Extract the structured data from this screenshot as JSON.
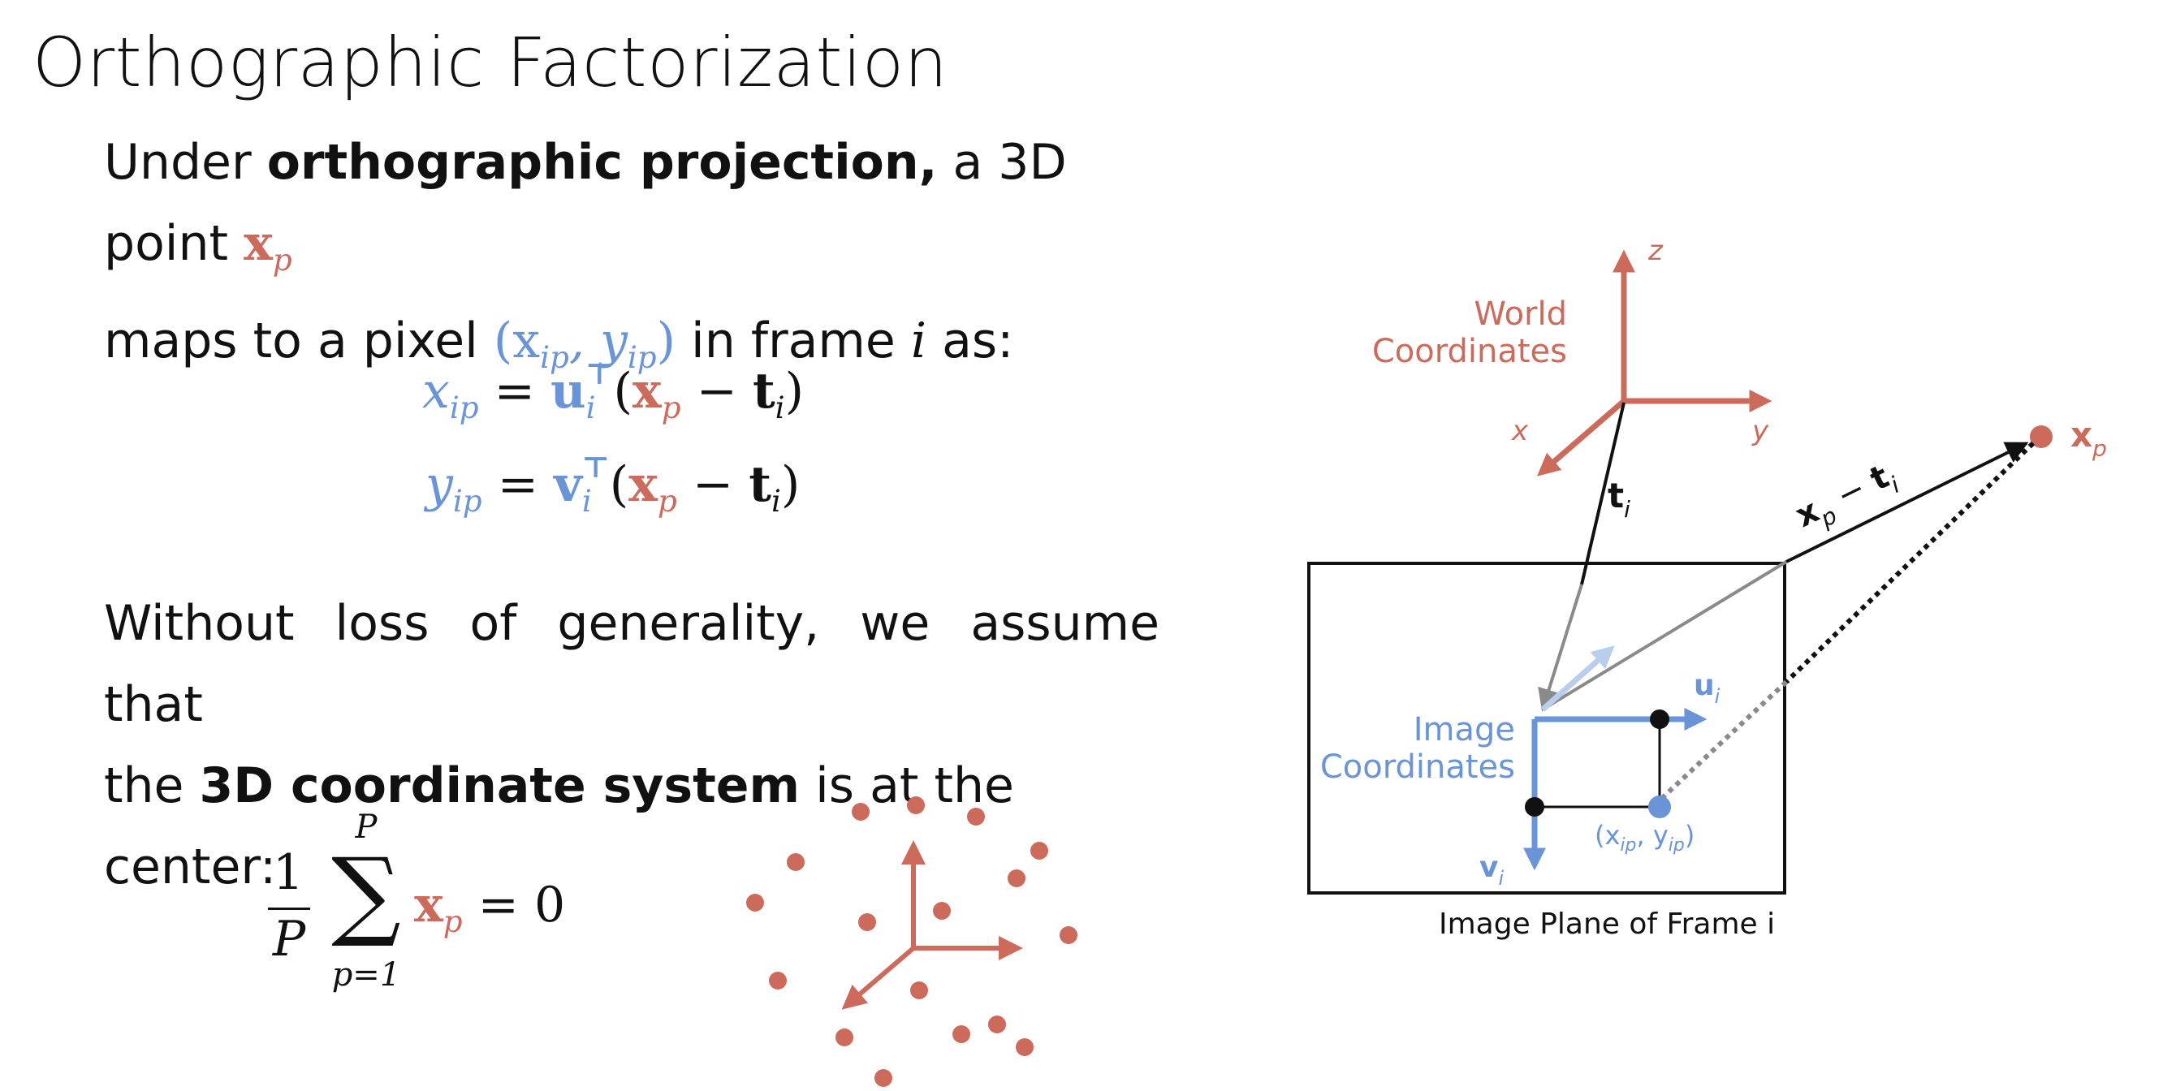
{
  "slide": {
    "title": "Orthographic Factorization"
  },
  "intro": {
    "line1_prefix": "Under ",
    "line1_bold": "orthographic projection,",
    "line1_suffix": " a 3D point ",
    "point_symbol": "x",
    "point_sub": "p",
    "line2_prefix": "maps to a pixel ",
    "pixel_symbol": "(x",
    "pixel_sub1": "ip",
    "pixel_mid": ", y",
    "pixel_sub2": "ip",
    "pixel_close": ")",
    "line2_mid": " in frame ",
    "frame_var": "i",
    "line2_suffix": " as:"
  },
  "equations": {
    "eq1_lhs": "x",
    "eq1_lhs_sub": "ip",
    "eq1_rhs_vec": "u",
    "eq1_rhs_sub": "i",
    "eq2_lhs": "y",
    "eq2_lhs_sub": "ip",
    "eq2_rhs_vec": "v",
    "eq2_rhs_sub": "i",
    "transpose": "⊤",
    "equals": "=",
    "open_paren": "(",
    "xp": "x",
    "xp_sub": "p",
    "minus": "−",
    "t": "t",
    "t_sub": "i",
    "close_paren": ")"
  },
  "assumption": {
    "line1": "Without loss of generality, we assume that",
    "line2_prefix": "the ",
    "line2_bold": "3D coordinate system",
    "line2_suffix": " is at the center:"
  },
  "centering_equation": {
    "numerator": "1",
    "denominator": "P",
    "sum_upper": "P",
    "sum_lower": "p=1",
    "sum_symbol": "∑",
    "term": "x",
    "term_sub": "p",
    "rhs": "= 0"
  },
  "diagram": {
    "world_label_line1": "World",
    "world_label_line2": "Coordinates",
    "axis_z": "z",
    "axis_y": "y",
    "axis_x": "x",
    "t_label": "t",
    "t_sub": "i",
    "point_label": "x",
    "point_sub": "p",
    "vector_label": "x",
    "vector_label_sub": "p",
    "vector_label_minus": " − ",
    "vector_label_t": "t",
    "vector_label_t_sub": "i",
    "image_label_line1": "Image",
    "image_label_line2": "Coordinates",
    "u_label": "u",
    "u_sub": "i",
    "v_label": "v",
    "v_sub": "i",
    "pixel_label": "(x",
    "pixel_label_sub1": "ip",
    "pixel_label_mid": ", y",
    "pixel_label_sub2": "ip",
    "pixel_label_close": ")",
    "plane_caption": "Image Plane of Frame i"
  },
  "colors": {
    "red": "#cc6a5c",
    "blue": "#6a94d8",
    "light_blue": "#b9cdec",
    "gray": "#8a8a8a",
    "black": "#111111"
  }
}
